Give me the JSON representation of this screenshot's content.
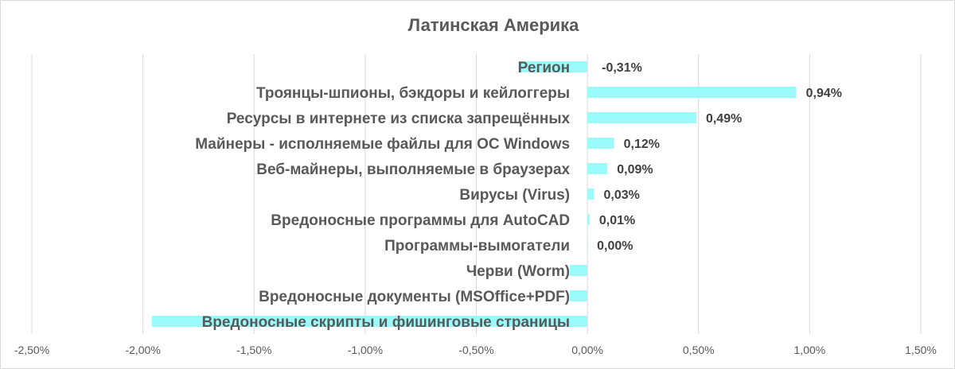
{
  "chart_data": {
    "type": "bar",
    "orientation": "horizontal",
    "title": "Латинская Америка",
    "bar_color": "#9BFBFB",
    "grid": true,
    "xlim": [
      -0.025,
      0.015
    ],
    "x_ticks": [
      -0.025,
      -0.02,
      -0.015,
      -0.01,
      -0.005,
      0,
      0.005,
      0.01,
      0.015
    ],
    "x_tick_labels": [
      "-2,50%",
      "-2,00%",
      "-1,50%",
      "-1,00%",
      "-0,50%",
      "0,00%",
      "0,50%",
      "1,00%",
      "1,50%"
    ],
    "categories": [
      "Регион",
      "Троянцы-шпионы, бэкдоры и кейлоггеры",
      "Ресурсы в интернете из списка запрещённых",
      "Майнеры - исполняемые файлы для ОС Windows",
      "Веб-майнеры, выполняемые в браузерах",
      "Вирусы (Virus)",
      "Вредоносные программы для AutoCAD",
      "Программы-вымогатели",
      "Черви (Worm)",
      "Вредоносные документы (MSOffice+PDF)",
      "Вредоносные скрипты и фишинговые страницы"
    ],
    "values": [
      -0.0031,
      0.0094,
      0.0049,
      0.0012,
      0.0009,
      0.0003,
      0.0001,
      0.0,
      -0.0008,
      -0.0008,
      -0.0196
    ],
    "data_labels": [
      "-0,31%",
      "0,94%",
      "0,49%",
      "0,12%",
      "0,09%",
      "0,03%",
      "0,01%",
      "0,00%",
      "",
      "",
      ""
    ]
  }
}
